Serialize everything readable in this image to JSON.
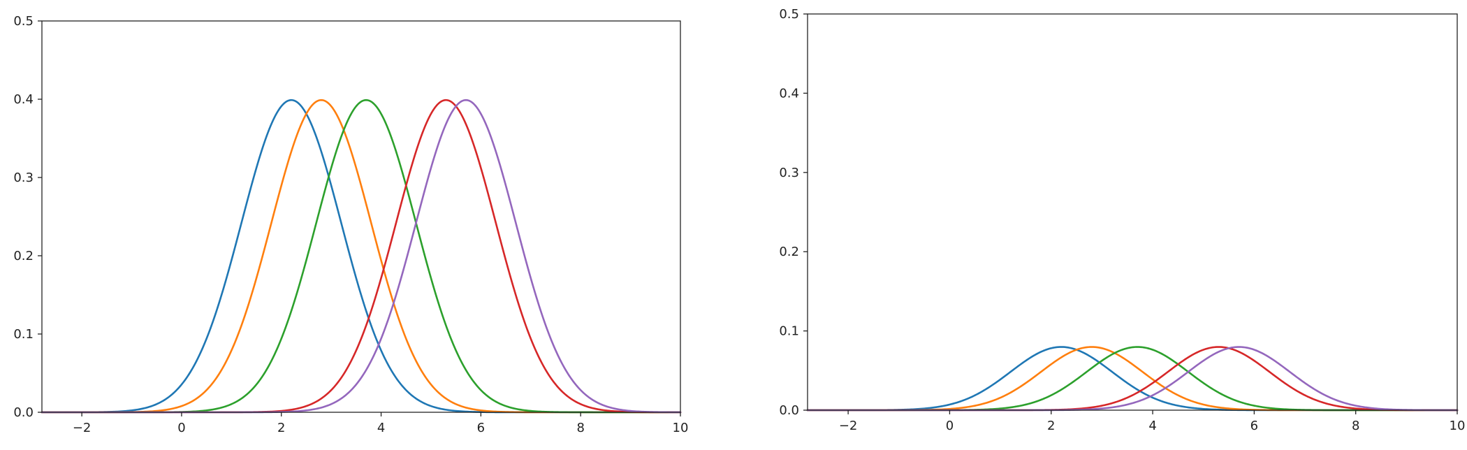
{
  "chart_data": [
    {
      "type": "line",
      "title": "",
      "xlabel": "",
      "ylabel": "",
      "xlim": [
        -2.8,
        10
      ],
      "ylim": [
        0,
        0.5
      ],
      "xticks": [
        -2,
        0,
        2,
        4,
        6,
        8,
        10
      ],
      "xtick_labels": [
        "−2",
        "0",
        "2",
        "4",
        "6",
        "8",
        "10"
      ],
      "yticks": [
        0,
        0.1,
        0.2,
        0.3,
        0.4,
        0.5
      ],
      "ytick_labels": [
        "0.0",
        "0.1",
        "0.2",
        "0.3",
        "0.4",
        "0.5"
      ],
      "grid": false,
      "legend": "none",
      "curve": "normal probability density",
      "series": [
        {
          "mean": 2.2,
          "std": 1.0,
          "amplitude": 1.0,
          "color": "#1f77b4"
        },
        {
          "mean": 2.8,
          "std": 1.0,
          "amplitude": 1.0,
          "color": "#ff7f0e"
        },
        {
          "mean": 3.7,
          "std": 1.0,
          "amplitude": 1.0,
          "color": "#2ca02c"
        },
        {
          "mean": 5.3,
          "std": 1.0,
          "amplitude": 1.0,
          "color": "#d62728"
        },
        {
          "mean": 5.7,
          "std": 1.0,
          "amplitude": 1.0,
          "color": "#9467bd"
        }
      ]
    },
    {
      "type": "line",
      "title": "",
      "xlabel": "",
      "ylabel": "",
      "xlim": [
        -2.8,
        10
      ],
      "ylim": [
        0,
        0.5
      ],
      "xticks": [
        -2,
        0,
        2,
        4,
        6,
        8,
        10
      ],
      "xtick_labels": [
        "−2",
        "0",
        "2",
        "4",
        "6",
        "8",
        "10"
      ],
      "yticks": [
        0,
        0.1,
        0.2,
        0.3,
        0.4,
        0.5
      ],
      "ytick_labels": [
        "0.0",
        "0.1",
        "0.2",
        "0.3",
        "0.4",
        "0.5"
      ],
      "grid": false,
      "legend": "none",
      "curve": "normal probability density",
      "series": [
        {
          "mean": 2.2,
          "std": 1.0,
          "amplitude": 0.2,
          "color": "#1f77b4"
        },
        {
          "mean": 2.8,
          "std": 1.0,
          "amplitude": 0.2,
          "color": "#ff7f0e"
        },
        {
          "mean": 3.7,
          "std": 1.0,
          "amplitude": 0.2,
          "color": "#2ca02c"
        },
        {
          "mean": 5.3,
          "std": 1.0,
          "amplitude": 0.2,
          "color": "#d62728"
        },
        {
          "mean": 5.7,
          "std": 1.0,
          "amplitude": 0.2,
          "color": "#9467bd"
        }
      ]
    }
  ]
}
